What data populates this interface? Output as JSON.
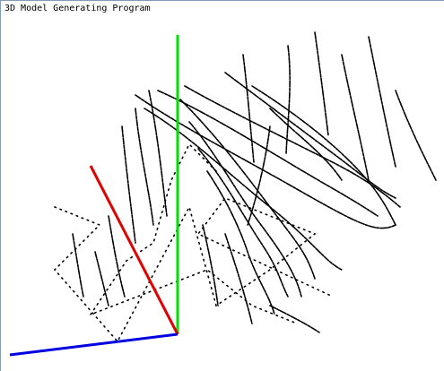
{
  "window": {
    "title": "3D Model Generating Program"
  }
}
